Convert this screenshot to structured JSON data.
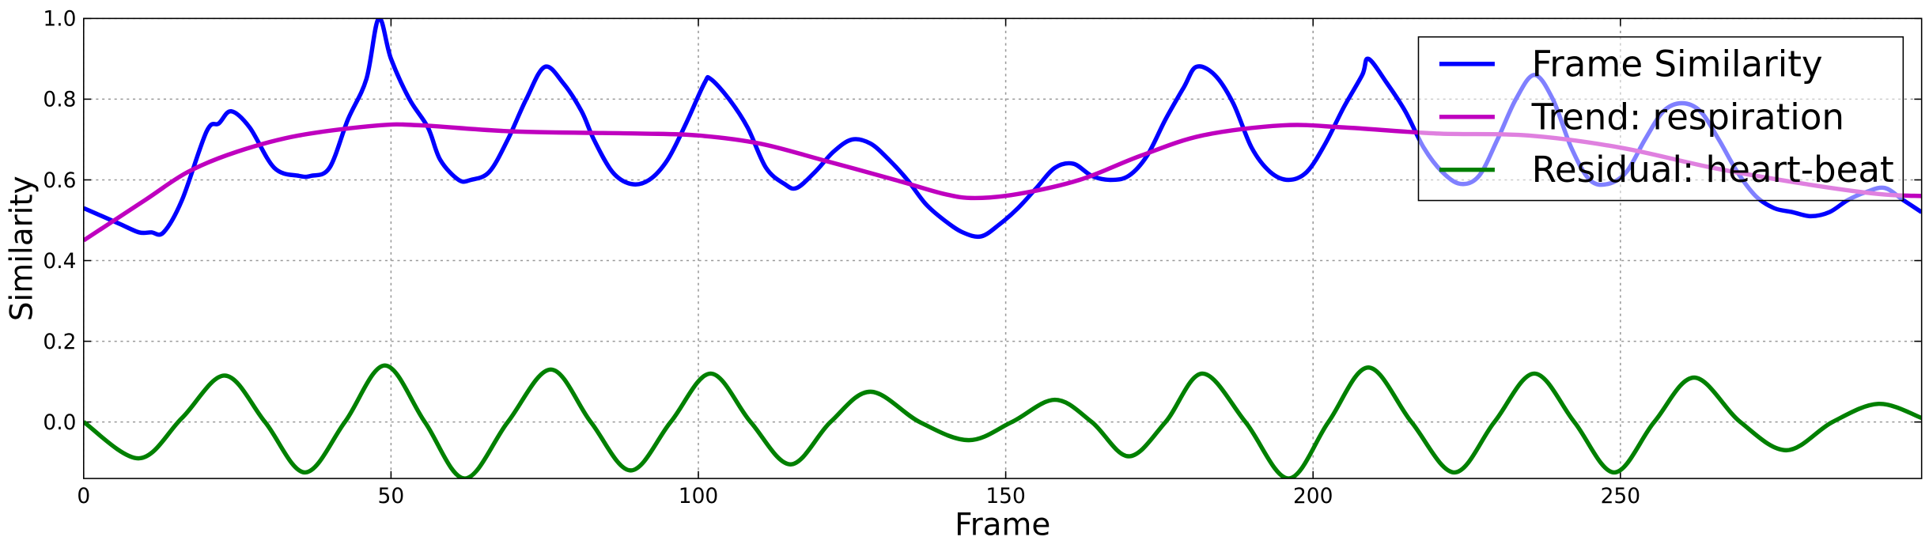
{
  "chart_data": {
    "type": "line",
    "xlabel": "Frame",
    "ylabel": "Similarity",
    "xlim": [
      0,
      299
    ],
    "ylim": [
      -0.14,
      1.0
    ],
    "xticks": [
      0,
      50,
      100,
      150,
      200,
      250
    ],
    "yticks": [
      {
        "value": 0,
        "label": "0.0"
      },
      0.2,
      0.4,
      0.6,
      0.8,
      {
        "value": 1,
        "label": "1.0"
      }
    ],
    "grid": true,
    "legend": "upper right",
    "series": [
      {
        "name": "Frame Similarity",
        "color": "#0000ff",
        "x": [
          0,
          3,
          6,
          9,
          11,
          13,
          16,
          20,
          22,
          24,
          27,
          31,
          35,
          37,
          40,
          43,
          46,
          48,
          50,
          53,
          56,
          58,
          61,
          63,
          66,
          69,
          72,
          75,
          78,
          81,
          83,
          86,
          89,
          92,
          95,
          98,
          101,
          102,
          105,
          108,
          111,
          114,
          116,
          119,
          122,
          125,
          128,
          131,
          134,
          137,
          140,
          143,
          146,
          149,
          152,
          155,
          158,
          161,
          164,
          167,
          170,
          173,
          176,
          179,
          181,
          184,
          187,
          190,
          193,
          196,
          199,
          202,
          205,
          208,
          209,
          212,
          215,
          218,
          221,
          224,
          227,
          230,
          233,
          236,
          239,
          242,
          245,
          248,
          251,
          254,
          257,
          260,
          263,
          266,
          269,
          272,
          275,
          278,
          281,
          284,
          287,
          290,
          293,
          296,
          299
        ],
        "values": [
          0.53,
          0.51,
          0.49,
          0.47,
          0.47,
          0.47,
          0.55,
          0.72,
          0.74,
          0.77,
          0.73,
          0.63,
          0.61,
          0.61,
          0.63,
          0.75,
          0.85,
          1.0,
          0.9,
          0.8,
          0.73,
          0.65,
          0.6,
          0.6,
          0.62,
          0.7,
          0.8,
          0.88,
          0.84,
          0.77,
          0.7,
          0.62,
          0.59,
          0.6,
          0.65,
          0.74,
          0.84,
          0.85,
          0.8,
          0.73,
          0.63,
          0.59,
          0.58,
          0.62,
          0.67,
          0.7,
          0.69,
          0.65,
          0.6,
          0.54,
          0.5,
          0.47,
          0.46,
          0.49,
          0.53,
          0.58,
          0.63,
          0.64,
          0.61,
          0.6,
          0.61,
          0.66,
          0.75,
          0.83,
          0.88,
          0.86,
          0.79,
          0.68,
          0.62,
          0.6,
          0.62,
          0.69,
          0.78,
          0.86,
          0.9,
          0.84,
          0.77,
          0.68,
          0.62,
          0.59,
          0.61,
          0.7,
          0.8,
          0.86,
          0.8,
          0.68,
          0.6,
          0.59,
          0.62,
          0.7,
          0.77,
          0.79,
          0.77,
          0.7,
          0.62,
          0.56,
          0.53,
          0.52,
          0.51,
          0.52,
          0.55,
          0.57,
          0.58,
          0.55,
          0.52
        ]
      },
      {
        "name": "Trend: respiration",
        "color": "#bf00bf",
        "x": [
          0,
          10,
          17,
          25,
          35,
          48,
          55,
          70,
          90,
          100,
          110,
          120,
          132,
          140,
          145,
          152,
          162,
          172,
          182,
          195,
          205,
          220,
          235,
          250,
          265,
          280,
          292,
          299
        ],
        "values": [
          0.45,
          0.55,
          0.62,
          0.67,
          0.71,
          0.735,
          0.735,
          0.72,
          0.715,
          0.71,
          0.69,
          0.65,
          0.6,
          0.565,
          0.555,
          0.565,
          0.6,
          0.66,
          0.71,
          0.735,
          0.73,
          0.715,
          0.71,
          0.68,
          0.63,
          0.59,
          0.565,
          0.56
        ]
      },
      {
        "name": "Residual: heart-beat",
        "color": "#008000",
        "x": [
          0,
          9,
          16,
          23,
          29.5,
          36,
          42.5,
          49,
          55.5,
          62,
          69,
          76,
          82.5,
          89,
          95.5,
          102,
          108.5,
          115,
          121.5,
          128,
          136,
          144,
          151,
          158,
          164,
          170,
          176,
          182,
          189,
          196,
          202.5,
          209,
          216,
          223,
          229.5,
          236,
          242.5,
          249,
          255.5,
          262,
          269.5,
          277,
          284.5,
          292,
          299
        ],
        "values": [
          0,
          -0.09,
          0.01,
          0.115,
          0,
          -0.125,
          0,
          0.14,
          0,
          -0.14,
          0,
          0.13,
          0,
          -0.12,
          0,
          0.12,
          0,
          -0.105,
          0,
          0.075,
          0,
          -0.045,
          0,
          0.055,
          0,
          -0.085,
          0,
          0.12,
          0,
          -0.14,
          0,
          0.135,
          0,
          -0.125,
          0,
          0.12,
          0,
          -0.125,
          0,
          0.11,
          0,
          -0.07,
          0,
          0.045,
          0.01
        ]
      }
    ]
  }
}
